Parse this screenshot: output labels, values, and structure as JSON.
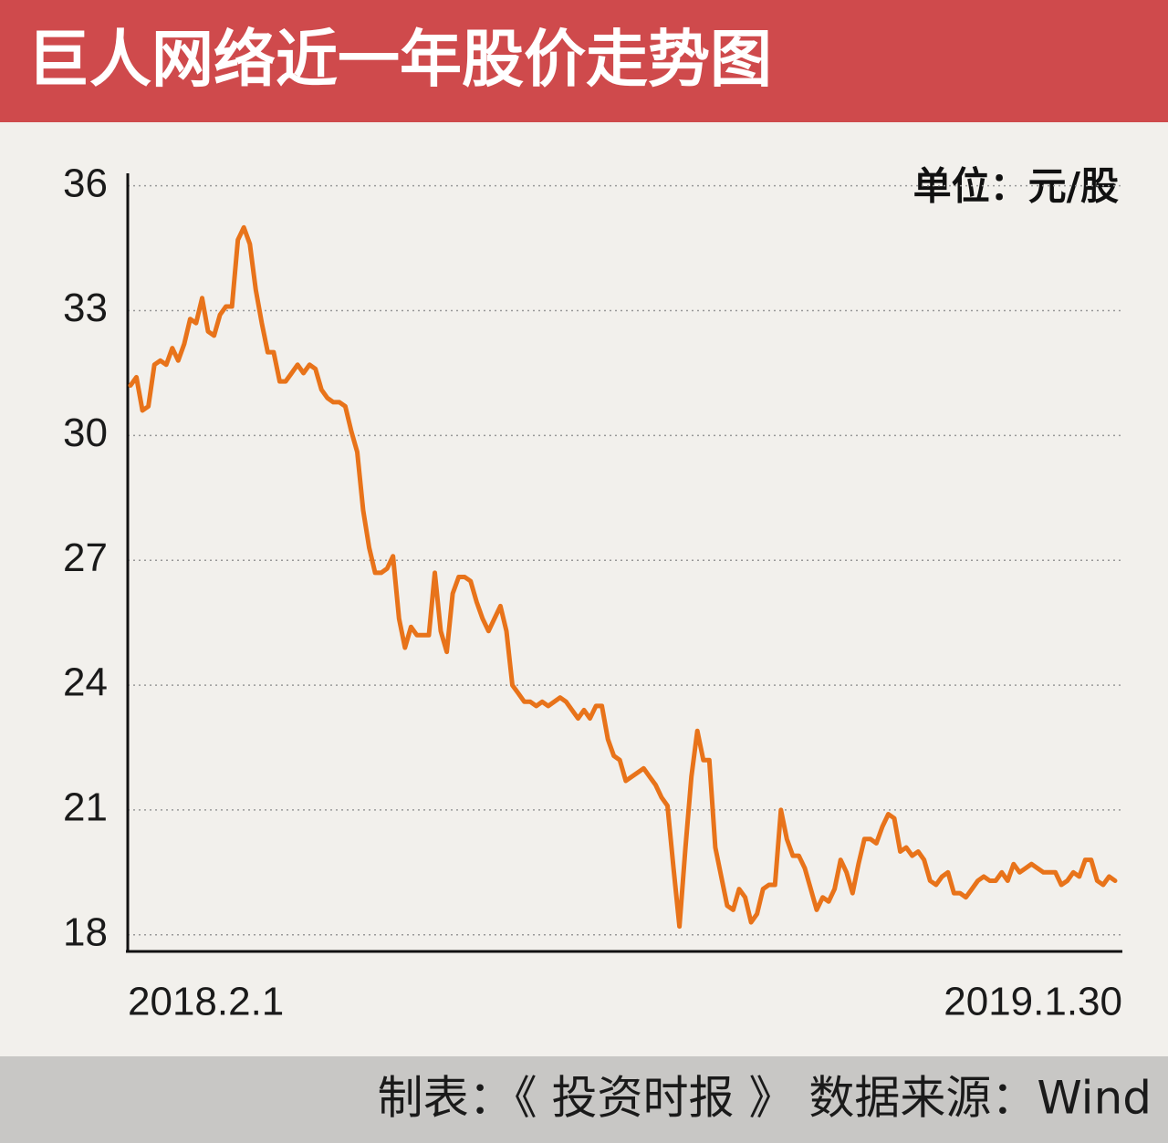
{
  "chart_data": {
    "type": "line",
    "title": "巨人网络近一年股价走势图",
    "unit_label": "单位：元/股",
    "source": "制表：《 投资时报 》   数据来源：Wind",
    "color": "#e8731a",
    "grid": true,
    "ylim": [
      17.6,
      36.3
    ],
    "yticks": [
      18,
      21,
      24,
      27,
      30,
      33,
      36
    ],
    "categories": [
      "2018.2.1",
      null,
      null,
      null,
      null,
      null,
      null,
      null,
      null,
      null,
      null,
      null,
      null,
      null,
      null,
      null,
      null,
      null,
      null,
      null,
      null,
      null,
      null,
      null,
      null,
      null,
      null,
      null,
      null,
      null,
      null,
      null,
      null,
      null,
      null,
      null,
      null,
      null,
      null,
      null,
      null,
      null,
      null,
      null,
      null,
      null,
      null,
      null,
      null,
      null,
      null,
      null,
      null,
      null,
      null,
      null,
      null,
      null,
      null,
      null,
      null,
      null,
      null,
      null,
      null,
      null,
      null,
      null,
      null,
      null,
      null,
      null,
      null,
      null,
      null,
      null,
      null,
      null,
      null,
      null,
      null,
      null,
      null,
      null,
      null,
      null,
      null,
      null,
      null,
      null,
      null,
      null,
      null,
      null,
      null,
      null,
      null,
      null,
      null,
      null,
      null,
      null,
      null,
      null,
      null,
      null,
      null,
      null,
      null,
      null,
      null,
      null,
      null,
      null,
      null,
      null,
      null,
      null,
      null,
      null,
      null,
      null,
      null,
      null,
      null,
      null,
      null,
      null,
      null,
      null,
      null,
      null,
      null,
      null,
      null,
      null,
      null,
      null,
      null,
      null,
      null,
      null,
      null,
      null,
      null,
      null,
      null,
      null,
      null,
      null,
      null,
      null,
      null,
      null,
      null,
      null,
      null,
      null,
      null,
      null,
      null,
      null,
      null,
      null,
      null,
      "2019.1.30"
    ],
    "values": [
      31.2,
      31.4,
      30.6,
      30.7,
      31.7,
      31.8,
      31.7,
      32.1,
      31.8,
      32.2,
      32.8,
      32.7,
      33.3,
      32.5,
      32.4,
      32.9,
      33.1,
      33.1,
      34.7,
      35.0,
      34.6,
      33.5,
      32.7,
      32.0,
      32.0,
      31.3,
      31.3,
      31.5,
      31.7,
      31.5,
      31.7,
      31.6,
      31.1,
      30.9,
      30.8,
      30.8,
      30.7,
      30.1,
      29.6,
      28.2,
      27.3,
      26.7,
      26.7,
      26.8,
      27.1,
      25.6,
      24.9,
      25.4,
      25.2,
      25.2,
      25.2,
      26.7,
      25.3,
      24.8,
      26.2,
      26.6,
      26.6,
      26.5,
      26.0,
      25.6,
      25.3,
      25.6,
      25.9,
      25.3,
      24.0,
      23.8,
      23.6,
      23.6,
      23.5,
      23.6,
      23.5,
      23.6,
      23.7,
      23.6,
      23.4,
      23.2,
      23.4,
      23.2,
      23.5,
      23.5,
      22.7,
      22.3,
      22.2,
      21.7,
      21.8,
      21.9,
      22.0,
      21.8,
      21.6,
      21.3,
      21.1,
      19.6,
      18.2,
      20.1,
      21.8,
      22.9,
      22.2,
      22.2,
      20.1,
      19.4,
      18.7,
      18.6,
      19.1,
      18.9,
      18.3,
      18.5,
      19.1,
      19.2,
      19.2,
      21.0,
      20.3,
      19.9,
      19.9,
      19.6,
      19.1,
      18.6,
      18.9,
      18.8,
      19.1,
      19.8,
      19.5,
      19.0,
      19.7,
      20.3,
      20.3,
      20.2,
      20.6,
      20.9,
      20.8,
      20.0,
      20.1,
      19.9,
      20.0,
      19.8,
      19.3,
      19.2,
      19.4,
      19.5,
      19.0,
      19.0,
      18.9,
      19.1,
      19.3,
      19.4,
      19.3,
      19.3,
      19.5,
      19.3,
      19.7,
      19.5,
      19.6,
      19.7,
      19.6,
      19.5,
      19.5,
      19.5,
      19.2,
      19.3,
      19.5,
      19.4,
      19.8,
      19.8,
      19.3,
      19.2,
      19.4,
      19.3
    ]
  }
}
